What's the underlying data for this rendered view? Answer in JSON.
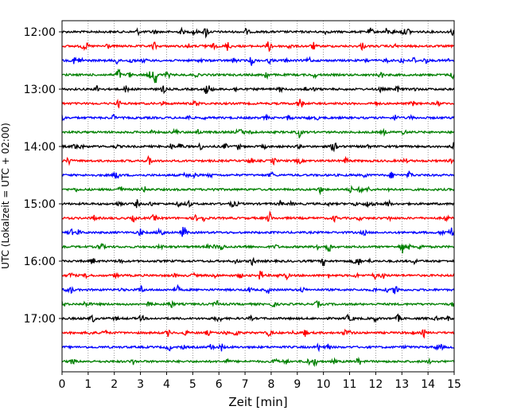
{
  "chart_data": {
    "type": "line",
    "title": "",
    "xlabel": "Zeit  [min]",
    "ylabel": "UTC (Lokalzeit = UTC + 02:00)",
    "xlim": [
      0,
      15
    ],
    "x_ticks": [
      0,
      1,
      2,
      3,
      4,
      5,
      6,
      7,
      8,
      9,
      10,
      11,
      12,
      13,
      14,
      15
    ],
    "x_tick_labels": [
      "0",
      "1",
      "2",
      "3",
      "4",
      "5",
      "6",
      "7",
      "8",
      "9",
      "10",
      "11",
      "12",
      "13",
      "14",
      "15"
    ],
    "y_tick_labels": [
      "12:00",
      "13:00",
      "14:00",
      "15:00",
      "16:00",
      "17:00"
    ],
    "y_tick_trace_index": [
      0,
      4,
      8,
      12,
      16,
      20
    ],
    "vertical_grid": true,
    "grid_style": "dotted",
    "traces_count": 24,
    "trace_interval_minutes": 15,
    "trace_start_utc": "12:00",
    "trace_colors": [
      "#000000",
      "#ff0000",
      "#0000ff",
      "#008000"
    ],
    "notable_events": [
      {
        "trace": 3,
        "x_min": 2.15,
        "amplitude": 0.55
      },
      {
        "trace": 3,
        "x_min": 3.55,
        "amplitude": 0.7
      },
      {
        "trace": 3,
        "x_min": 7.8,
        "amplitude": 0.35
      },
      {
        "trace": 10,
        "x_min": 13.3,
        "amplitude": 0.35
      },
      {
        "trace": 12,
        "x_min": 11.95,
        "amplitude": 0.3
      },
      {
        "trace": 15,
        "x_min": 10.2,
        "amplitude": 0.55
      },
      {
        "trace": 16,
        "x_min": 10.0,
        "amplitude": 0.3
      },
      {
        "trace": 17,
        "x_min": 7.6,
        "amplitude": 0.4
      },
      {
        "trace": 2,
        "x_min": 9.45,
        "amplitude": 0.25
      },
      {
        "trace": 7,
        "x_min": 9.05,
        "amplitude": 0.3
      }
    ]
  }
}
